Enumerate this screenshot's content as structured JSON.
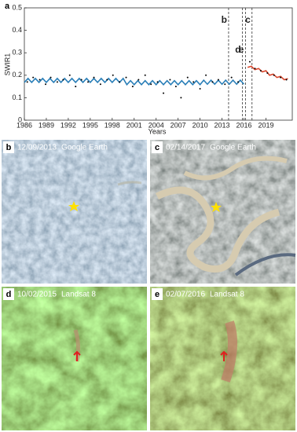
{
  "chart_data": {
    "type": "line",
    "label": "a",
    "x_label": "Years",
    "y_label": "SWIR1",
    "xlim": [
      1986,
      2022.6
    ],
    "ylim": [
      0,
      0.5
    ],
    "xticks": [
      1986,
      1989,
      1992,
      1995,
      1998,
      2001,
      2004,
      2007,
      2010,
      2013,
      2016,
      2019
    ],
    "yticks": [
      0,
      0.1,
      0.2,
      0.3,
      0.4,
      0.5
    ],
    "markers": [
      {
        "label": "b",
        "x": 2013.9
      },
      {
        "label": "d",
        "x": 2015.8
      },
      {
        "label": "e",
        "x": 2016.2
      },
      {
        "label": "c",
        "x": 2017.1
      }
    ],
    "series": [
      {
        "kind": "line",
        "color": "#2a7fb8",
        "x": [
          1986,
          1986.5,
          1987,
          1987.5,
          1988,
          1988.5,
          1989,
          1989.5,
          1990,
          1990.5,
          1991,
          1991.5,
          1992,
          1992.5,
          1993,
          1993.5,
          1994,
          1994.5,
          1995,
          1995.5,
          1996,
          1996.5,
          1997,
          1997.5,
          1998,
          1998.5,
          1999,
          1999.5,
          2000,
          2000.5,
          2001,
          2001.5,
          2002,
          2002.5,
          2003,
          2003.5,
          2004,
          2004.5,
          2005,
          2005.5,
          2006,
          2006.5,
          2007,
          2007.5,
          2008,
          2008.5,
          2009,
          2009.5,
          2010,
          2010.5,
          2011,
          2011.5,
          2012,
          2012.5,
          2013,
          2013.5,
          2014,
          2014.5,
          2015,
          2015.5,
          2016
        ],
        "values": [
          0.168,
          0.186,
          0.168,
          0.186,
          0.168,
          0.186,
          0.168,
          0.186,
          0.168,
          0.186,
          0.168,
          0.186,
          0.168,
          0.186,
          0.168,
          0.186,
          0.168,
          0.186,
          0.168,
          0.186,
          0.168,
          0.186,
          0.168,
          0.186,
          0.168,
          0.186,
          0.168,
          0.186,
          0.158,
          0.176,
          0.158,
          0.176,
          0.158,
          0.176,
          0.158,
          0.176,
          0.158,
          0.176,
          0.158,
          0.176,
          0.158,
          0.176,
          0.158,
          0.176,
          0.158,
          0.176,
          0.158,
          0.176,
          0.158,
          0.178,
          0.16,
          0.178,
          0.16,
          0.178,
          0.16,
          0.178,
          0.16,
          0.178,
          0.16,
          0.178,
          0.16
        ]
      },
      {
        "kind": "line",
        "color": "#d9452b",
        "x": [
          2016.5,
          2017,
          2017.5,
          2018,
          2018.5,
          2019,
          2019.5,
          2020,
          2020.5,
          2021,
          2021.5,
          2022
        ],
        "values": [
          0.235,
          0.24,
          0.225,
          0.23,
          0.215,
          0.22,
          0.2,
          0.205,
          0.19,
          0.195,
          0.18,
          0.185
        ]
      },
      {
        "kind": "scatter",
        "color": "#000000",
        "x": [
          1986.4,
          1987.2,
          1988.1,
          1988.9,
          1989.6,
          1990.5,
          1991.3,
          1992.2,
          1993.0,
          1993.8,
          1994.7,
          1995.5,
          1996.4,
          1997.3,
          1998.1,
          1999.0,
          1999.9,
          2000.8,
          2001.6,
          2002.5,
          2003.3,
          2004.2,
          2005.0,
          2005.9,
          2006.7,
          2007.4,
          2008.3,
          2009.1,
          2010.0,
          2010.8,
          2011.7,
          2012.5,
          2013.4,
          2014.3,
          2015.2,
          2016.8,
          2017.5,
          2018.3,
          2019.2,
          2020.1,
          2021.0,
          2021.8
        ],
        "values": [
          0.17,
          0.19,
          0.18,
          0.16,
          0.19,
          0.17,
          0.18,
          0.2,
          0.15,
          0.18,
          0.17,
          0.19,
          0.16,
          0.18,
          0.2,
          0.17,
          0.19,
          0.15,
          0.18,
          0.2,
          0.16,
          0.17,
          0.12,
          0.18,
          0.15,
          0.1,
          0.19,
          0.17,
          0.14,
          0.2,
          0.17,
          0.18,
          0.16,
          0.19,
          0.17,
          0.26,
          0.23,
          0.22,
          0.21,
          0.2,
          0.19,
          0.18
        ]
      }
    ]
  },
  "panels": [
    {
      "label": "b",
      "date": "12/09/2013",
      "source": "Google Earth"
    },
    {
      "label": "c",
      "date": "02/14/2017",
      "source": "Google Earth"
    },
    {
      "label": "d",
      "date": "10/02/2015",
      "source": "Landsat 8"
    },
    {
      "label": "e",
      "date": "02/07/2016",
      "source": "Landsat 8"
    }
  ]
}
